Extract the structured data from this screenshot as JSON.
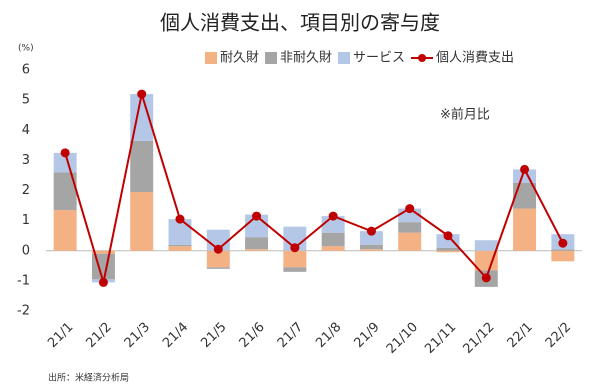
{
  "chart_data": {
    "type": "bar",
    "title": "個人消費支出、項目別の寄与度",
    "y_unit": "(%)",
    "annotation": "※前月比",
    "source": "出所：米経済分析局",
    "categories": [
      "21/1",
      "21/2",
      "21/3",
      "21/4",
      "21/5",
      "21/6",
      "21/7",
      "21/8",
      "21/9",
      "21/10",
      "21/11",
      "21/12",
      "22/1",
      "22/2"
    ],
    "series": [
      {
        "name": "耐久財",
        "color": "#f4b183",
        "values": [
          1.35,
          -0.1,
          1.95,
          0.15,
          -0.55,
          0.05,
          -0.55,
          0.15,
          0.05,
          0.6,
          -0.05,
          -0.65,
          1.4,
          -0.35
        ]
      },
      {
        "name": "非耐久財",
        "color": "#a5a5a5",
        "values": [
          1.25,
          -0.85,
          1.7,
          0.05,
          -0.05,
          0.4,
          -0.15,
          0.45,
          0.15,
          0.35,
          0.1,
          -0.55,
          0.85,
          0.05
        ]
      },
      {
        "name": "サービス",
        "color": "#b4c7e7",
        "values": [
          0.65,
          -0.1,
          1.55,
          0.85,
          0.7,
          0.75,
          0.8,
          0.55,
          0.45,
          0.45,
          0.45,
          0.35,
          0.45,
          0.5
        ]
      },
      {
        "name": "個人消費支出",
        "color": "#c00000",
        "type": "line",
        "values": [
          3.25,
          -1.05,
          5.2,
          1.05,
          0.05,
          1.15,
          0.1,
          1.15,
          0.65,
          1.4,
          0.5,
          -0.9,
          2.7,
          0.25
        ]
      }
    ],
    "ylim": [
      -2,
      6
    ],
    "yticks": [
      -2,
      -1,
      0,
      1,
      2,
      3,
      4,
      5,
      6
    ]
  }
}
